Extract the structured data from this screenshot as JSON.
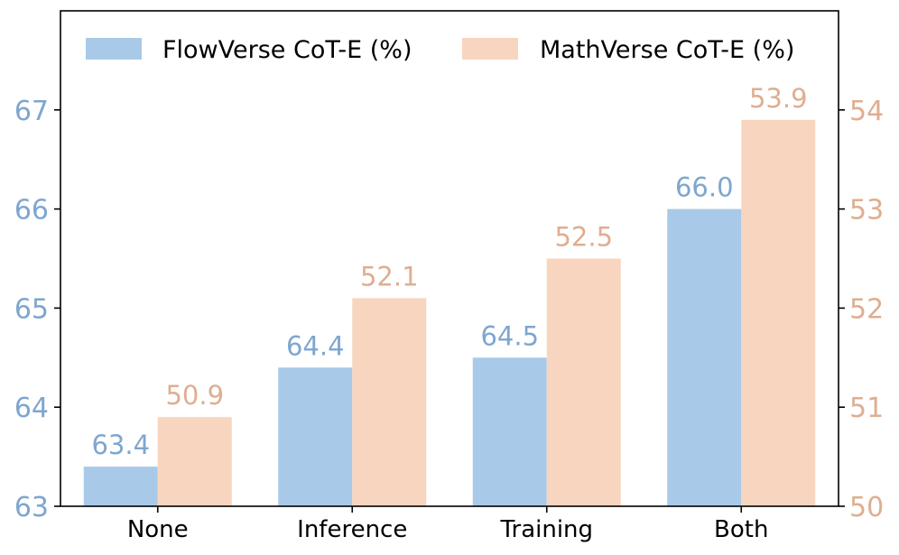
{
  "chart_data": {
    "type": "bar",
    "categories": [
      "None",
      "Inference",
      "Training",
      "Both"
    ],
    "series": [
      {
        "name": "FlowVerse CoT-E (%)",
        "values": [
          63.4,
          64.4,
          64.5,
          66.0
        ],
        "labels": [
          "63.4",
          "64.4",
          "64.5",
          "66.0"
        ],
        "axis": "left",
        "color": "#a8cae8",
        "label_color": "#7ea6cf"
      },
      {
        "name": "MathVerse CoT-E (%)",
        "values": [
          50.9,
          52.1,
          52.5,
          53.9
        ],
        "labels": [
          "50.9",
          "52.1",
          "52.5",
          "53.9"
        ],
        "axis": "right",
        "color": "#f8d5bf",
        "label_color": "#dfae90"
      }
    ],
    "y_left": {
      "ylim": [
        63,
        68
      ],
      "ticks": [
        "63",
        "64",
        "65",
        "66",
        "67"
      ],
      "color": "#7ea6cf"
    },
    "y_right": {
      "ylim": [
        50,
        55
      ],
      "ticks": [
        "50",
        "51",
        "52",
        "53",
        "54"
      ],
      "color": "#dfae90"
    },
    "legend": "top",
    "grid": false
  }
}
